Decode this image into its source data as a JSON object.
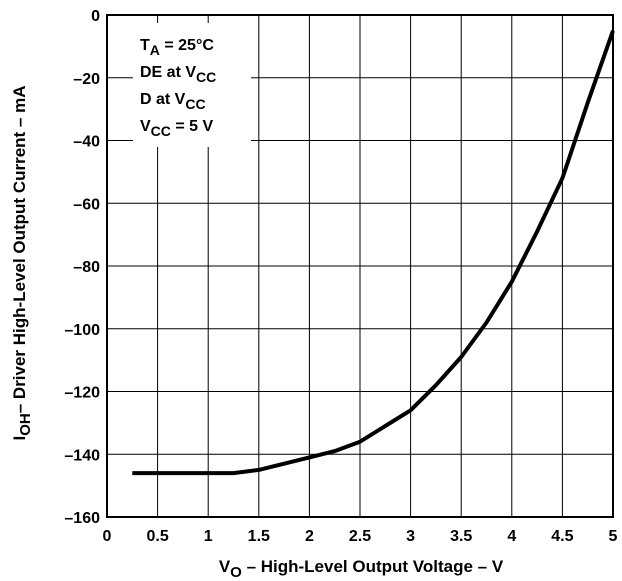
{
  "chart_data": {
    "type": "line",
    "xlabel": {
      "main": "V",
      "sub": "O",
      "rest": " – High-Level Output Voltage – V"
    },
    "ylabel": {
      "main": "I",
      "sub": "OH",
      "rest": "– Driver High-Level Output Current – mA"
    },
    "xlim": [
      0,
      5
    ],
    "ylim": [
      -160,
      0
    ],
    "x_ticks": [
      "0",
      "0.5",
      "1",
      "1.5",
      "2",
      "2.5",
      "3",
      "3.5",
      "4",
      "4.5",
      "5"
    ],
    "y_ticks": [
      "0",
      "–20",
      "–40",
      "–60",
      "–80",
      "–100",
      "–120",
      "–140",
      "–160"
    ],
    "grid": true,
    "legend_placement": "top-left",
    "conditions": [
      {
        "main": "T",
        "sub": "A",
        "rest": " = 25°C"
      },
      {
        "main": "DE at V",
        "sub": "CC",
        "rest": ""
      },
      {
        "main": "D at V",
        "sub": "CC",
        "rest": ""
      },
      {
        "main": "V",
        "sub": "CC",
        "rest": " = 5 V"
      }
    ],
    "series": [
      {
        "x": [
          0.25,
          0.5,
          0.75,
          1.0,
          1.25,
          1.5,
          1.75,
          2.0,
          2.25,
          2.5,
          2.75,
          3.0,
          3.25,
          3.5,
          3.75,
          4.0,
          4.25,
          4.5,
          4.75,
          5.0
        ],
        "y": [
          -146,
          -146,
          -146,
          -146,
          -146,
          -145,
          -143,
          -141,
          -139,
          -136,
          -131,
          -126,
          -118,
          -109,
          -98,
          -85,
          -69,
          -52,
          -28,
          -5
        ]
      }
    ]
  },
  "colors": {
    "line": "#000000",
    "grid": "#000000",
    "background": "#ffffff"
  }
}
